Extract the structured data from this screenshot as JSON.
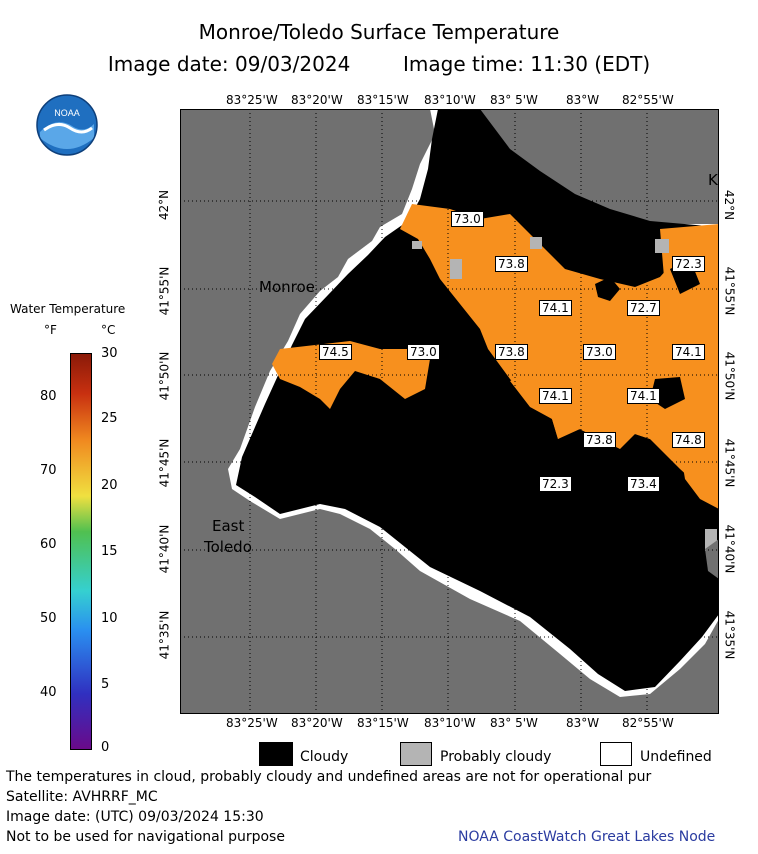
{
  "title": "Monroe/Toledo Surface Temperature",
  "subtitle_date": "Image date: 09/03/2024",
  "subtitle_time": "Image time: 11:30 (EDT)",
  "lon_labels": [
    "83°25'W",
    "83°20'W",
    "83°15'W",
    "83°10'W",
    "83° 5'W",
    "83°W",
    "82°55'W"
  ],
  "lat_labels": [
    "42°N",
    "41°55'N",
    "41°50'N",
    "41°45'N",
    "41°40'N",
    "41°35'N"
  ],
  "places": {
    "monroe": "Monroe",
    "east": "East",
    "toledo": "Toledo",
    "k": "K"
  },
  "legend": {
    "title": "Water Temperature",
    "unit_f": "°F",
    "unit_c": "°C",
    "f_ticks": [
      "80",
      "70",
      "60",
      "50",
      "40"
    ],
    "c_ticks": [
      "30",
      "25",
      "20",
      "15",
      "10",
      "5",
      "0"
    ],
    "colors": [
      "#6a0a8a",
      "#3030c0",
      "#2a8ff0",
      "#35d0d0",
      "#50c050",
      "#f0e040",
      "#f08a20",
      "#c83010",
      "#8a1a08"
    ]
  },
  "temps": [
    "73.0",
    "73.8",
    "72.3",
    "74.1",
    "72.7",
    "74.5",
    "73.0",
    "73.8",
    "73.0",
    "74.1",
    "74.1",
    "74.1",
    "73.8",
    "74.8",
    "72.3",
    "73.4"
  ],
  "key": {
    "cloudy": "Cloudy",
    "probably_cloudy": "Probably cloudy",
    "undefined": "Undefined"
  },
  "footer": {
    "line1": "The temperatures in cloud, probably cloudy and undefined areas are not for operational pur",
    "line2": "Satellite: AVHRRF_MC",
    "line3": "Image date: (UTC) 09/03/2024  15:30",
    "line4": "Not to be used for navigational purpose",
    "credit": "NOAA CoastWatch Great Lakes Node"
  },
  "colors": {
    "land": "#707070",
    "cloud": "#000000",
    "water": "#f7901e",
    "prob_cloud": "#b4b4b4",
    "undefined": "#ffffff"
  }
}
